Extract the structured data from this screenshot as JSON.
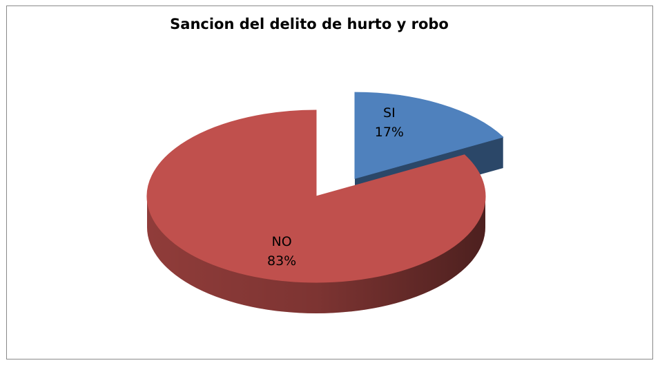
{
  "chart_data": {
    "type": "pie",
    "title": "Sancion del delito de hurto y robo",
    "categories": [
      "SI",
      "NO"
    ],
    "values": [
      17,
      83
    ],
    "value_labels": [
      "17%",
      "83%"
    ],
    "colors": [
      "#4f81bd",
      "#c0504d"
    ],
    "exploded": [
      true,
      false
    ]
  }
}
